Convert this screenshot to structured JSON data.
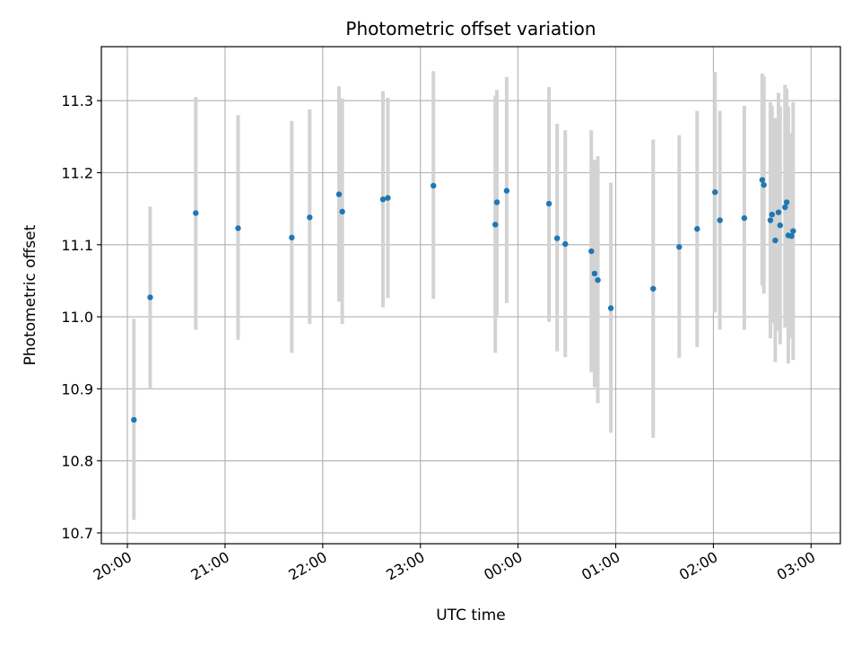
{
  "chart_data": {
    "type": "scatter",
    "title": "Photometric offset variation",
    "xlabel": "UTC time",
    "ylabel": "Photometric offset",
    "xlim": [
      "2024-01-01T19:44",
      "2024-01-02T03:18"
    ],
    "ylim": [
      10.685,
      11.375
    ],
    "grid": true,
    "legend": "none",
    "colors": {
      "marker": "#1f77b4",
      "errorbar": "#d3d3d3",
      "grid": "#b0b0b0"
    },
    "xticks": [
      {
        "t": "2024-01-01T20:00",
        "label": "20:00"
      },
      {
        "t": "2024-01-01T21:00",
        "label": "21:00"
      },
      {
        "t": "2024-01-01T22:00",
        "label": "22:00"
      },
      {
        "t": "2024-01-01T23:00",
        "label": "23:00"
      },
      {
        "t": "2024-01-02T00:00",
        "label": "00:00"
      },
      {
        "t": "2024-01-02T01:00",
        "label": "01:00"
      },
      {
        "t": "2024-01-02T02:00",
        "label": "02:00"
      },
      {
        "t": "2024-01-02T03:00",
        "label": "03:00"
      }
    ],
    "yticks": [
      {
        "v": 10.7,
        "label": "10.7"
      },
      {
        "v": 10.8,
        "label": "10.8"
      },
      {
        "v": 10.9,
        "label": "10.9"
      },
      {
        "v": 11.0,
        "label": "11.0"
      },
      {
        "v": 11.1,
        "label": "11.1"
      },
      {
        "v": 11.2,
        "label": "11.2"
      },
      {
        "v": 11.3,
        "label": "11.3"
      }
    ],
    "points": [
      {
        "t": "2024-01-01T20:04",
        "y": 10.857,
        "ylo": 10.718,
        "yhi": 10.997
      },
      {
        "t": "2024-01-01T20:14",
        "y": 11.027,
        "ylo": 10.9,
        "yhi": 11.153
      },
      {
        "t": "2024-01-01T20:42",
        "y": 11.144,
        "ylo": 10.982,
        "yhi": 11.305
      },
      {
        "t": "2024-01-01T21:08",
        "y": 11.123,
        "ylo": 10.968,
        "yhi": 11.28
      },
      {
        "t": "2024-01-01T21:41",
        "y": 11.11,
        "ylo": 10.95,
        "yhi": 11.272
      },
      {
        "t": "2024-01-01T21:52",
        "y": 11.138,
        "ylo": 10.99,
        "yhi": 11.288
      },
      {
        "t": "2024-01-01T22:10",
        "y": 11.17,
        "ylo": 11.021,
        "yhi": 11.32
      },
      {
        "t": "2024-01-01T22:12",
        "y": 11.146,
        "ylo": 10.99,
        "yhi": 11.303
      },
      {
        "t": "2024-01-01T22:37",
        "y": 11.163,
        "ylo": 11.013,
        "yhi": 11.313
      },
      {
        "t": "2024-01-01T22:40",
        "y": 11.165,
        "ylo": 11.026,
        "yhi": 11.304
      },
      {
        "t": "2024-01-01T23:08",
        "y": 11.182,
        "ylo": 11.025,
        "yhi": 11.341
      },
      {
        "t": "2024-01-01T23:46",
        "y": 11.128,
        "ylo": 10.95,
        "yhi": 11.307
      },
      {
        "t": "2024-01-01T23:47",
        "y": 11.159,
        "ylo": 11.002,
        "yhi": 11.315
      },
      {
        "t": "2024-01-01T23:53",
        "y": 11.175,
        "ylo": 11.019,
        "yhi": 11.333
      },
      {
        "t": "2024-01-02T00:19",
        "y": 11.157,
        "ylo": 10.993,
        "yhi": 11.319
      },
      {
        "t": "2024-01-02T00:24",
        "y": 11.109,
        "ylo": 10.952,
        "yhi": 11.268
      },
      {
        "t": "2024-01-02T00:29",
        "y": 11.101,
        "ylo": 10.944,
        "yhi": 11.259
      },
      {
        "t": "2024-01-02T00:45",
        "y": 11.091,
        "ylo": 10.923,
        "yhi": 11.259
      },
      {
        "t": "2024-01-02T00:47",
        "y": 11.06,
        "ylo": 10.902,
        "yhi": 11.218
      },
      {
        "t": "2024-01-02T00:49",
        "y": 11.051,
        "ylo": 10.88,
        "yhi": 11.223
      },
      {
        "t": "2024-01-02T00:57",
        "y": 11.012,
        "ylo": 10.839,
        "yhi": 11.186
      },
      {
        "t": "2024-01-02T01:23",
        "y": 11.039,
        "ylo": 10.832,
        "yhi": 11.246
      },
      {
        "t": "2024-01-02T01:39",
        "y": 11.097,
        "ylo": 10.943,
        "yhi": 11.252
      },
      {
        "t": "2024-01-02T01:50",
        "y": 11.122,
        "ylo": 10.958,
        "yhi": 11.286
      },
      {
        "t": "2024-01-02T02:01",
        "y": 11.173,
        "ylo": 11.006,
        "yhi": 11.34
      },
      {
        "t": "2024-01-02T02:04",
        "y": 11.134,
        "ylo": 10.982,
        "yhi": 11.286
      },
      {
        "t": "2024-01-02T02:19",
        "y": 11.137,
        "ylo": 10.982,
        "yhi": 11.293
      },
      {
        "t": "2024-01-02T02:30",
        "y": 11.19,
        "ylo": 11.043,
        "yhi": 11.338
      },
      {
        "t": "2024-01-02T02:31",
        "y": 11.183,
        "ylo": 11.032,
        "yhi": 11.334
      },
      {
        "t": "2024-01-02T02:35",
        "y": 11.134,
        "ylo": 10.97,
        "yhi": 11.298
      },
      {
        "t": "2024-01-02T02:36",
        "y": 11.142,
        "ylo": 10.991,
        "yhi": 11.293
      },
      {
        "t": "2024-01-02T02:38",
        "y": 11.106,
        "ylo": 10.937,
        "yhi": 11.276
      },
      {
        "t": "2024-01-02T02:40",
        "y": 11.145,
        "ylo": 10.98,
        "yhi": 11.311
      },
      {
        "t": "2024-01-02T02:41",
        "y": 11.127,
        "ylo": 10.962,
        "yhi": 11.292
      },
      {
        "t": "2024-01-02T02:44",
        "y": 11.152,
        "ylo": 10.985,
        "yhi": 11.322
      },
      {
        "t": "2024-01-02T02:45",
        "y": 11.159,
        "ylo": 11.001,
        "yhi": 11.317
      },
      {
        "t": "2024-01-02T02:46",
        "y": 11.113,
        "ylo": 10.935,
        "yhi": 11.292
      },
      {
        "t": "2024-01-02T02:48",
        "y": 11.112,
        "ylo": 10.97,
        "yhi": 11.255
      },
      {
        "t": "2024-01-02T02:49",
        "y": 11.119,
        "ylo": 10.94,
        "yhi": 11.298
      }
    ]
  }
}
